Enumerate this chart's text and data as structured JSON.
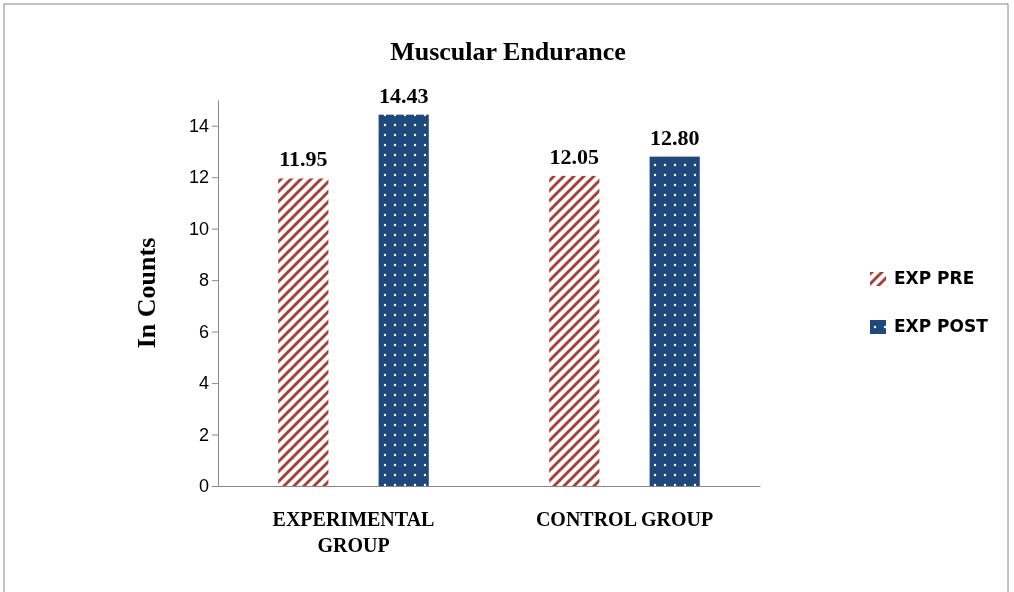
{
  "chart_data": {
    "type": "bar",
    "title": "Muscular Endurance",
    "ylabel": "In Counts",
    "categories": [
      "EXPERIMENTAL GROUP",
      "CONTROL GROUP"
    ],
    "series": [
      {
        "name": "EXP PRE",
        "color": "#a5403b",
        "values": [
          11.95,
          12.05
        ],
        "value_labels": [
          "11.95",
          "12.05"
        ]
      },
      {
        "name": "EXP POST",
        "color": "#1f497d",
        "values": [
          14.43,
          12.8
        ],
        "value_labels": [
          "14.43",
          "12.80"
        ]
      }
    ],
    "ylim": [
      0,
      15
    ],
    "yticks": [
      0,
      2,
      4,
      6,
      8,
      10,
      12,
      14
    ],
    "grid": false,
    "legend": "right"
  }
}
